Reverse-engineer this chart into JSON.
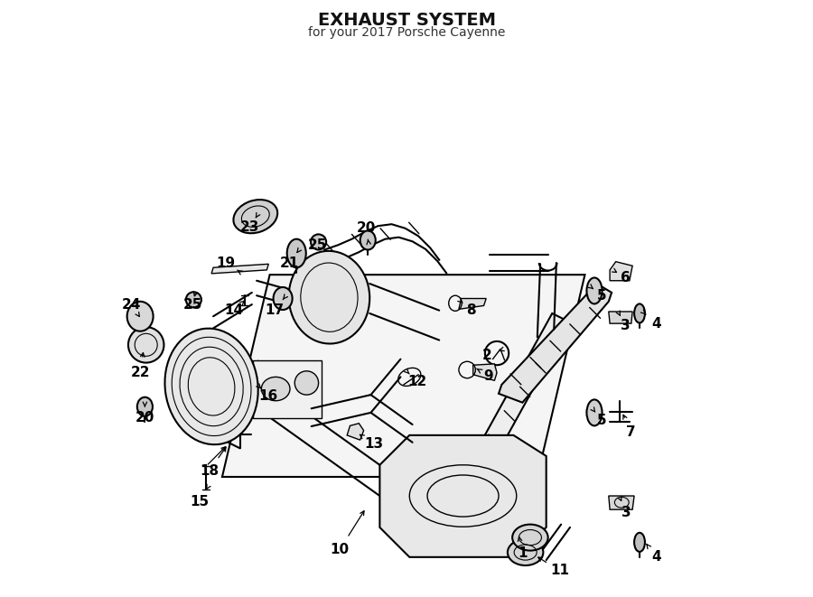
{
  "title": "EXHAUST SYSTEM",
  "subtitle": "for your 2017 Porsche Cayenne",
  "bg_color": "#ffffff",
  "line_color": "#000000",
  "label_color": "#000000",
  "figsize": [
    9.0,
    6.61
  ],
  "dpi": 100
}
